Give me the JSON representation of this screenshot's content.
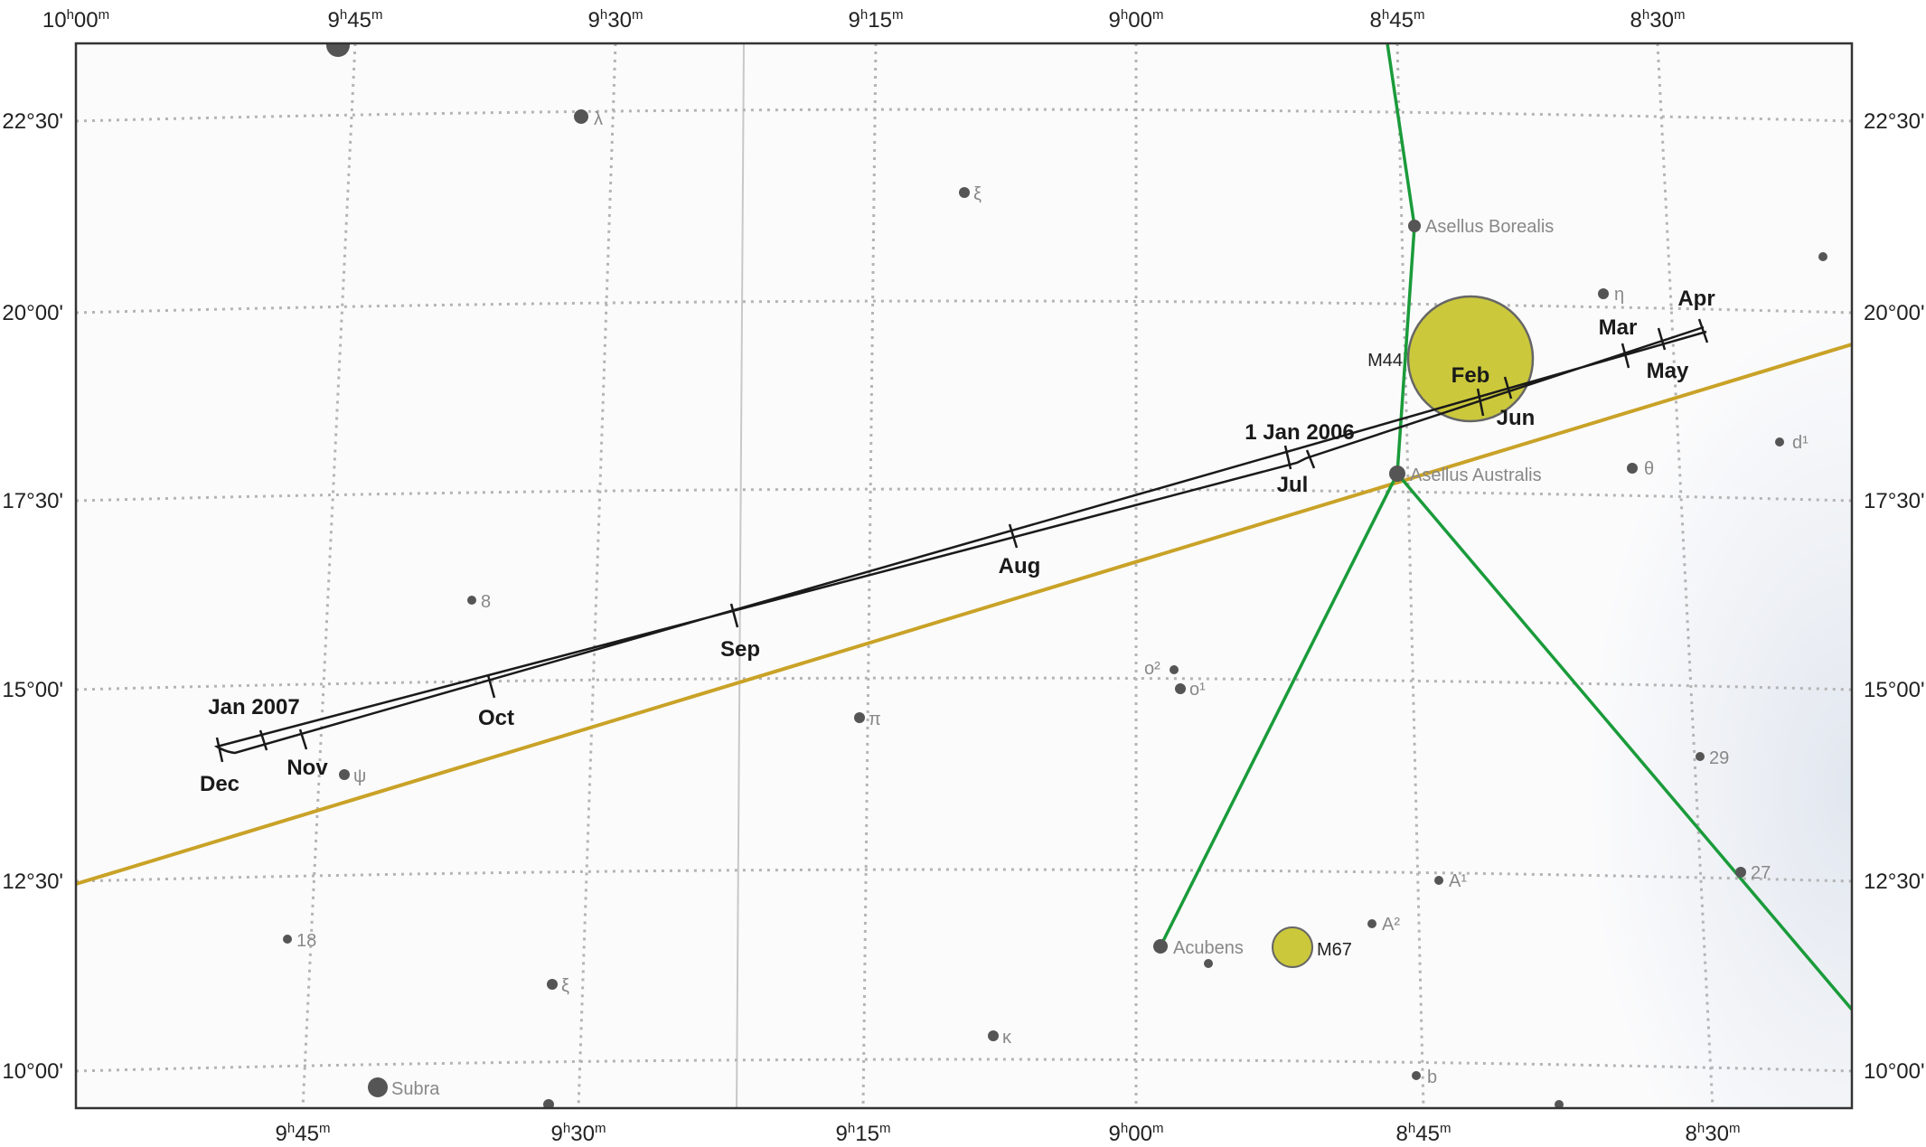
{
  "ra_labels": [
    "10h00m",
    "9h45m",
    "9h30m",
    "9h15m",
    "9h00m",
    "8h45m",
    "8h30m"
  ],
  "dec_labels": [
    "22°30'",
    "20°00'",
    "17°30'",
    "15°00'",
    "12°30'",
    "10°00'"
  ],
  "ecliptic_color": "#c9a227",
  "constellation_color": "#1a9b3a",
  "dso_color": "#cbc83c",
  "stars": [
    {
      "name": "",
      "mag": "bright"
    },
    {
      "name": "λ",
      "mag": "medium"
    },
    {
      "name": "ξ",
      "mag": "faint"
    },
    {
      "name": "Asellus Borealis",
      "mag": "medium"
    },
    {
      "name": "η",
      "mag": "faint"
    },
    {
      "name": "",
      "mag": "faint"
    },
    {
      "name": "d¹",
      "mag": "faint"
    },
    {
      "name": "Asellus Australis",
      "mag": "medium"
    },
    {
      "name": "θ",
      "mag": "faint"
    },
    {
      "name": "8",
      "mag": "faint"
    },
    {
      "name": "o²",
      "mag": "faint"
    },
    {
      "name": "o¹",
      "mag": "faint"
    },
    {
      "name": "π",
      "mag": "faint"
    },
    {
      "name": "ψ",
      "mag": "faint"
    },
    {
      "name": "29",
      "mag": "faint"
    },
    {
      "name": "A¹",
      "mag": "faint"
    },
    {
      "name": "27",
      "mag": "faint"
    },
    {
      "name": "A²",
      "mag": "faint"
    },
    {
      "name": "18",
      "mag": "faint"
    },
    {
      "name": "Acubens",
      "mag": "medium"
    },
    {
      "name": "",
      "mag": "faint"
    },
    {
      "name": "ξ",
      "mag": "faint"
    },
    {
      "name": "κ",
      "mag": "faint"
    },
    {
      "name": "b",
      "mag": "faint"
    },
    {
      "name": "Subra",
      "mag": "medium"
    },
    {
      "name": "",
      "mag": "faint"
    },
    {
      "name": "",
      "mag": "faint"
    }
  ],
  "dsos": [
    {
      "name": "M44"
    },
    {
      "name": "M67"
    }
  ],
  "path_labels": [
    "1 Jan 2006",
    "Feb",
    "Mar",
    "Apr",
    "May",
    "Jun",
    "Jul",
    "Aug",
    "Sep",
    "Oct",
    "Nov",
    "Dec",
    "Jan 2007"
  ]
}
